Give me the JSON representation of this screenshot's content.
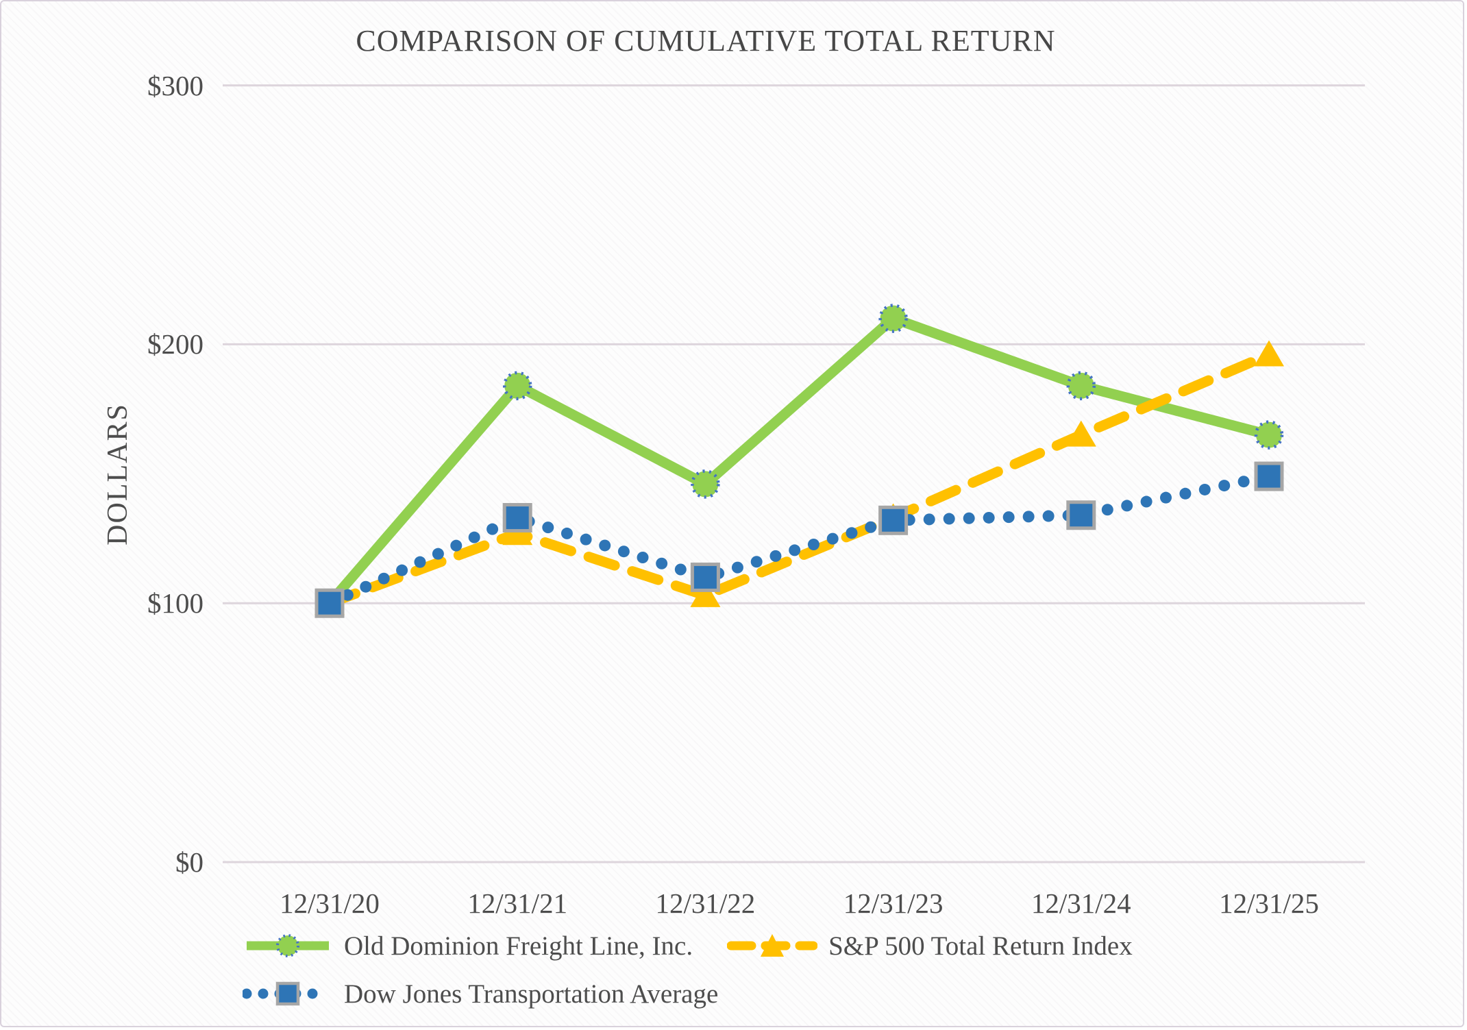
{
  "title": "COMPARISON OF CUMULATIVE TOTAL RETURN",
  "chart_data": {
    "type": "line",
    "title": "COMPARISON OF CUMULATIVE TOTAL RETURN",
    "xlabel": "",
    "ylabel": "DOLLARS",
    "ylim": [
      0,
      300
    ],
    "grid": true,
    "legend_position": "bottom",
    "yticks": [
      {
        "label": "$300",
        "value": 300
      },
      {
        "label": "$200",
        "value": 200
      },
      {
        "label": "$100",
        "value": 100
      },
      {
        "label": "$0",
        "value": 0
      }
    ],
    "categories": [
      "12/31/20",
      "12/31/21",
      "12/31/22",
      "12/31/23",
      "12/31/24",
      "12/31/25"
    ],
    "series": [
      {
        "name": "Old Dominion Freight Line, Inc.",
        "values": [
          100,
          184,
          146,
          210,
          184,
          165
        ],
        "color": "#92d050",
        "line": "solid",
        "marker": "circle",
        "marker_border": "#4472c4"
      },
      {
        "name": "S&P 500 Total Return Index",
        "values": [
          100,
          127,
          103,
          133,
          165,
          196
        ],
        "color": "#ffc000",
        "line": "dashed",
        "marker": "triangle",
        "marker_border": "#ffc000"
      },
      {
        "name": "Dow Jones Transportation Average",
        "values": [
          100,
          133,
          110,
          132,
          134,
          149
        ],
        "color": "#2e75b6",
        "line": "dotted",
        "marker": "square",
        "marker_border": "#a6a6a6"
      }
    ],
    "colors": {
      "gridline": "#ddd5dc",
      "text": "#4d4d4d"
    }
  }
}
